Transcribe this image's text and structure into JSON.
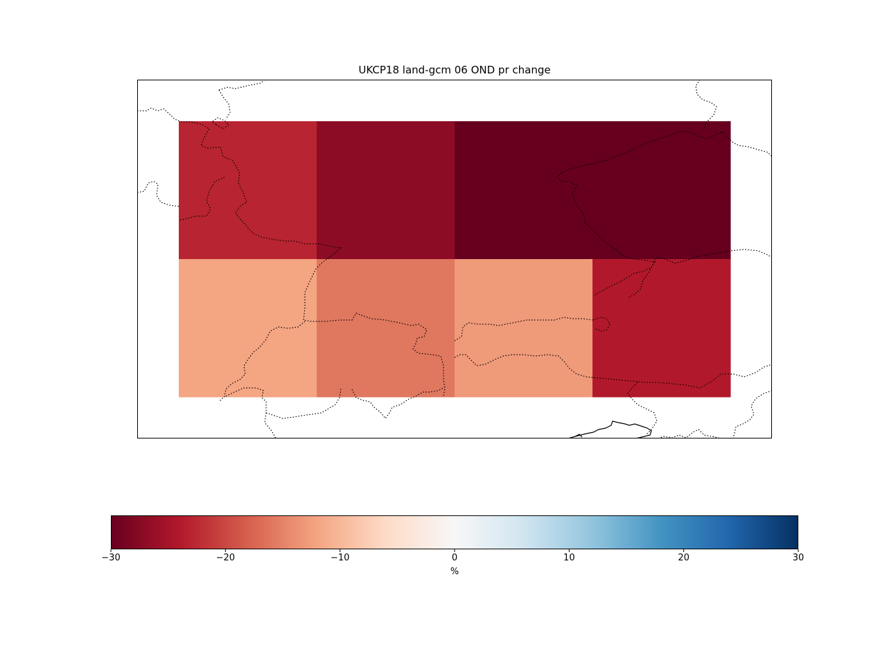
{
  "chart_data": {
    "type": "heatmap",
    "title": "UKCP18 land-gcm 06 OND pr change",
    "grid": {
      "rows": 2,
      "cols": 4,
      "values": [
        [
          -23,
          -27,
          -30,
          -30
        ],
        [
          -12,
          -16,
          -13,
          -24
        ]
      ],
      "masked": [
        [
          false,
          false,
          false,
          false
        ],
        [
          false,
          false,
          false,
          false
        ]
      ]
    },
    "colorbar": {
      "label": "%",
      "vmin": -30,
      "vmax": 30,
      "ticks": [
        -30,
        -20,
        -10,
        0,
        10,
        20,
        30
      ],
      "tick_labels": [
        "−30",
        "−20",
        "−10",
        "0",
        "10",
        "20",
        "30"
      ],
      "colormap": "RdBu",
      "orientation": "horizontal"
    },
    "map": {
      "borders": "dotted",
      "coastlines": "solid"
    }
  }
}
